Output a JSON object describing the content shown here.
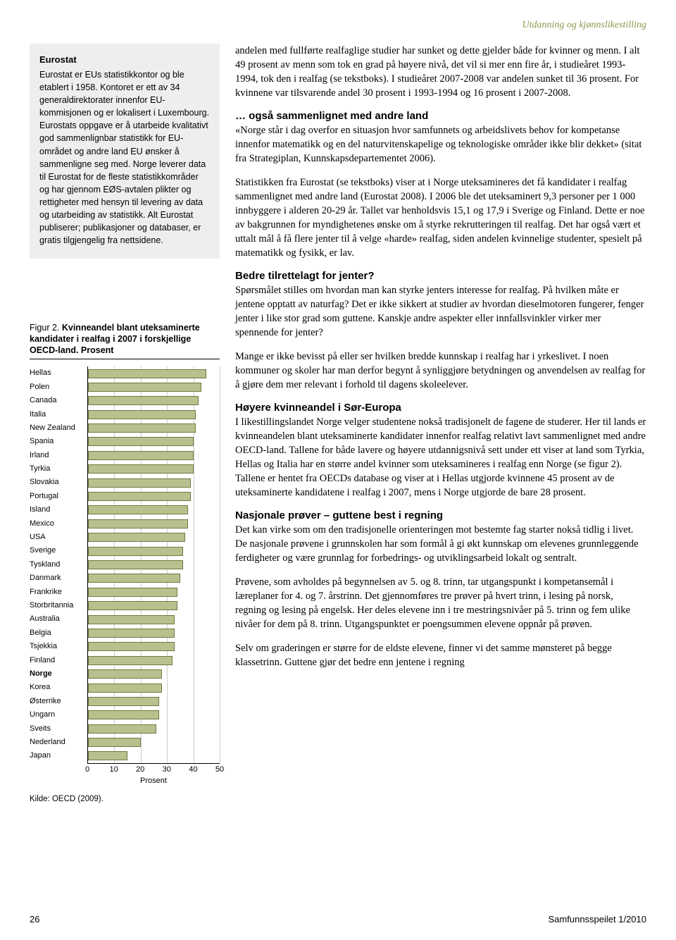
{
  "header": {
    "section_label": "Utdanning og kjønnslikestilling"
  },
  "infobox": {
    "title": "Eurostat",
    "body": "Eurostat er EUs statistikkontor og ble etablert i 1958. Kontoret er ett av 34 generaldirektorater innenfor EU-kommisjonen og er lokalisert i Luxembourg. Eurostats oppgave er å utarbeide kvalitativt god sammenlignbar statistikk for EU-området og andre land EU ønsker å sammenligne seg med. Norge leverer data til Eurostat for de fleste statistikkområder og har gjennom EØS-avtalen plikter og rettigheter med hensyn til levering av data og utarbeiding av statistikk. Alt Eurostat publiserer; publikasjoner og databaser, er gratis tilgjengelig fra nettsidene."
  },
  "figure": {
    "lead": "Figur 2. ",
    "title": "Kvinneandel blant uteksaminerte kandidater i realfag i 2007 i forskjellige OECD-land. Prosent",
    "type": "bar",
    "orientation": "horizontal",
    "categories": [
      "Hellas",
      "Polen",
      "Canada",
      "Italia",
      "New Zealand",
      "Spania",
      "Irland",
      "Tyrkia",
      "Slovakia",
      "Portugal",
      "Island",
      "Mexico",
      "USA",
      "Sverige",
      "Tyskland",
      "Danmark",
      "Frankrike",
      "Storbritannia",
      "Australia",
      "Belgia",
      "Tsjekkia",
      "Finland",
      "Norge",
      "Korea",
      "Østerrike",
      "Ungarn",
      "Sveits",
      "Nederland",
      "Japan"
    ],
    "values": [
      45,
      43,
      42,
      41,
      41,
      40,
      40,
      40,
      39,
      39,
      38,
      38,
      37,
      36,
      36,
      35,
      34,
      34,
      33,
      33,
      33,
      32,
      28,
      28,
      27,
      27,
      26,
      20,
      15
    ],
    "bold_category": "Norge",
    "xlim": [
      0,
      50
    ],
    "xtick_step": 10,
    "xticks": [
      0,
      10,
      20,
      30,
      40,
      50
    ],
    "xlabel": "Prosent",
    "bar_fill_color": "#b8c18e",
    "bar_border_color": "#6d7a42",
    "grid_color": "#cccccc",
    "background_color": "#ffffff",
    "label_fontsize": 11,
    "source": "Kilde: OECD (2009)."
  },
  "body": {
    "p1": "andelen med fullførte realfaglige studier har sunket og dette gjelder både for kvinner og menn. I alt 49 prosent av menn som tok en grad på høyere nivå, det vil si mer enn fire år, i studieåret 1993-1994, tok den i realfag (se tekstboks). I studieåret 2007-2008 var andelen sunket til 36 prosent. For kvinnene var tilsvarende andel 30 prosent i 1993-1994 og 16 prosent i 2007-2008.",
    "h2": "… også sammenlignet med andre land",
    "p2": "«Norge står i dag overfor en situasjon hvor samfunnets og arbeidslivets behov for kompetanse innenfor matematikk og en del naturvitenskapelige og teknologiske områder ikke blir dekket» (sitat fra Strategiplan, Kunnskapsdepartementet 2006).",
    "p3": "Statistikken fra Eurostat (se tekstboks) viser at i Norge uteksamineres det få kandidater i realfag sammenlignet med andre land (Eurostat 2008). I 2006 ble det uteksaminert 9,3 personer per 1 000 innbyggere i alderen 20-29 år. Tallet var henholdsvis 15,1 og 17,9 i Sverige og Finland. Dette er noe av bakgrunnen for myndighetenes ønske om å styrke rekrutteringen til realfag. Det har også vært et uttalt mål å få flere jenter til å velge «harde» realfag, siden andelen kvinnelige studenter, spesielt på matematikk og fysikk, er lav.",
    "h3": "Bedre tilrettelagt for jenter?",
    "p4": "Spørsmålet stilles om hvordan man kan styrke jenters interesse for realfag. På hvilken måte er jentene opptatt av naturfag? Det er ikke sikkert at studier av hvordan dieselmotoren fungerer, fenger jenter i like stor grad som guttene. Kanskje andre aspekter eller innfallsvinkler virker mer spennende for jenter?",
    "p5": "Mange er ikke bevisst på eller ser hvilken bredde kunnskap i realfag har i yrkeslivet. I noen kommuner og skoler har man derfor begynt å synliggjøre betydningen og anvendelsen av realfag for å gjøre dem mer relevant i forhold til dagens skoleelever.",
    "h4": "Høyere kvinneandel i Sør-Europa",
    "p6": "I likestillingslandet Norge velger studentene nokså tradisjonelt de fagene de studerer. Her til lands er kvinneandelen blant uteksaminerte kandidater innenfor realfag relativt lavt sammenlignet med andre OECD-land. Tallene for både lavere og høyere utdannigsnivå sett under ett viser at land som Tyrkia, Hellas og Italia har en større andel kvinner som uteksamineres i realfag enn Norge (se figur 2). Tallene er hentet fra OECDs database og viser at i Hellas utgjorde kvinnene 45 prosent av de uteksaminerte kandidatene i realfag i 2007, mens i Norge utgjorde de bare 28 prosent.",
    "h5": "Nasjonale prøver – guttene best i regning",
    "p7": "Det kan virke som om den tradisjonelle orienteringen mot bestemte fag starter nokså tidlig i livet. De nasjonale prøvene i grunnskolen har som formål å gi økt kunnskap om elevenes grunnleggende ferdigheter og være grunnlag for forbedrings- og utviklingsarbeid lokalt og sentralt.",
    "p8": "Prøvene, som avholdes på begynnelsen av 5. og 8. trinn, tar utgangspunkt i kompetansemål i læreplaner for 4. og 7. årstrinn. Det gjennomføres tre prøver på hvert trinn, i lesing på norsk, regning og lesing på engelsk. Her deles elevene inn i tre mestringsnivåer på 5. trinn og fem ulike nivåer for dem på 8. trinn. Utgangspunktet er poengsummen elevene oppnår på prøven.",
    "p9": "Selv om graderingen er større for de eldste elevene, finner vi det samme mønsteret på begge klassetrinn. Guttene gjør det bedre enn jentene i regning"
  },
  "footer": {
    "page_number": "26",
    "publication": "Samfunnsspeilet 1/2010"
  },
  "colors": {
    "header_color": "#8a9a4a",
    "text_color": "#000000",
    "infobox_bg": "#eeeeee"
  }
}
